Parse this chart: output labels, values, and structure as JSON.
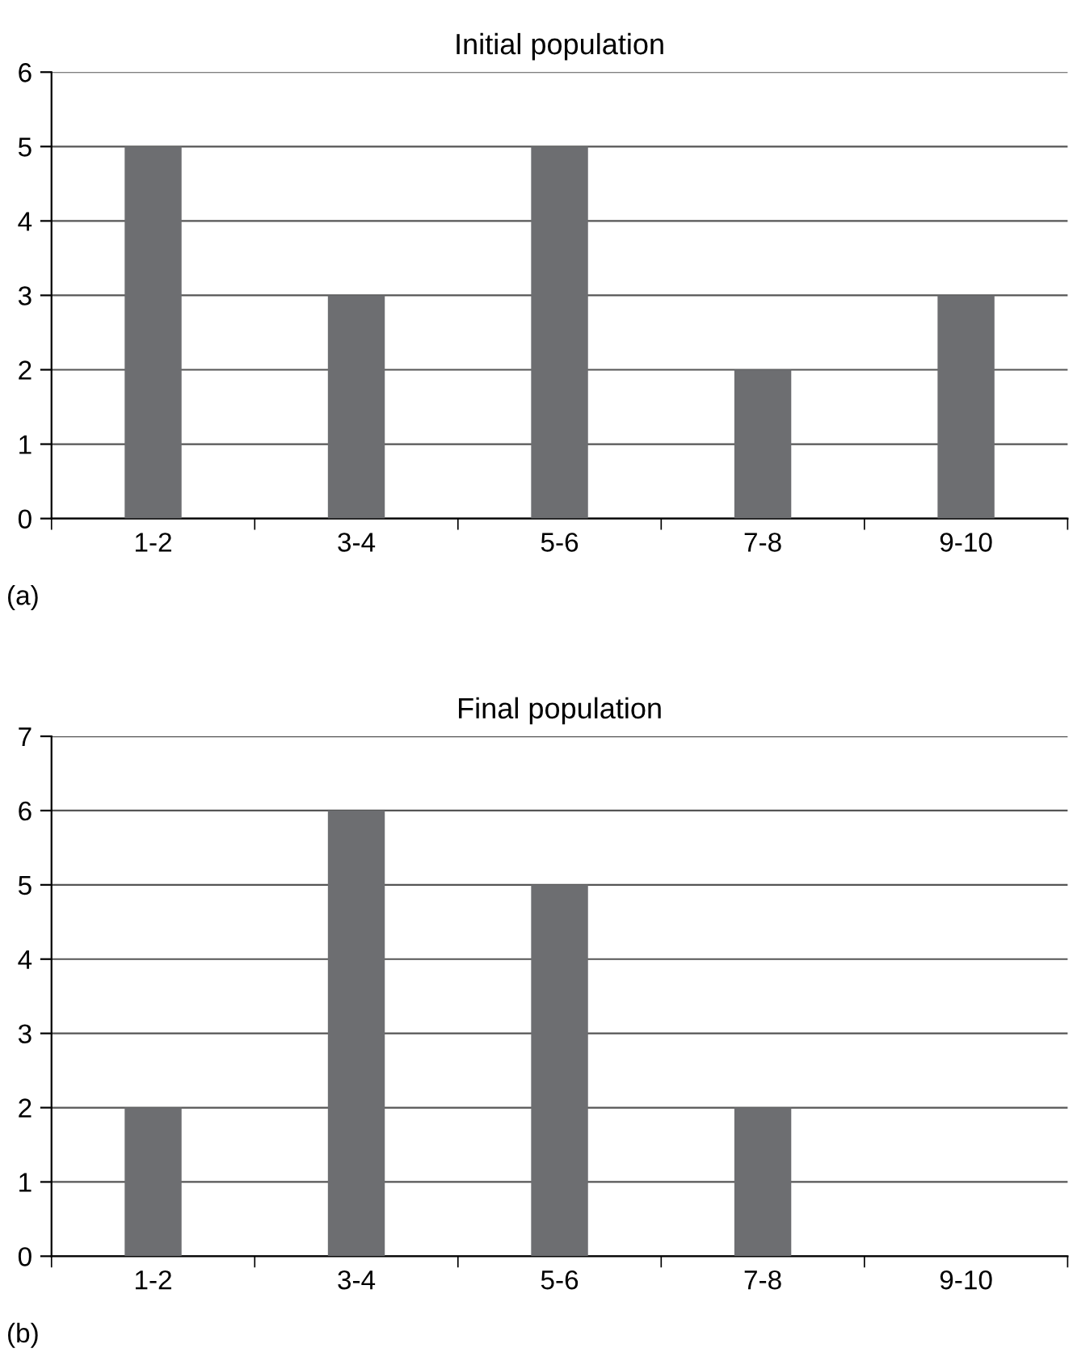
{
  "chart_data": [
    {
      "type": "bar",
      "title": "Initial population",
      "categories": [
        "1-2",
        "3-4",
        "5-6",
        "7-8",
        "9-10"
      ],
      "values": [
        5,
        3,
        5,
        2,
        3
      ],
      "color": "#6d6e71",
      "ylim": [
        0,
        6
      ],
      "yticks": [
        0,
        1,
        2,
        3,
        4,
        5,
        6
      ],
      "grid": "y",
      "annotations": [
        "(a)"
      ]
    },
    {
      "type": "bar",
      "title": "Final population",
      "categories": [
        "1-2",
        "3-4",
        "5-6",
        "7-8",
        "9-10"
      ],
      "values": [
        2,
        6,
        5,
        2,
        0
      ],
      "color": "#6d6e71",
      "ylim": [
        0,
        7
      ],
      "yticks": [
        0,
        1,
        2,
        3,
        4,
        5,
        6,
        7
      ],
      "grid": "y",
      "annotations": [
        "(b)"
      ]
    }
  ]
}
